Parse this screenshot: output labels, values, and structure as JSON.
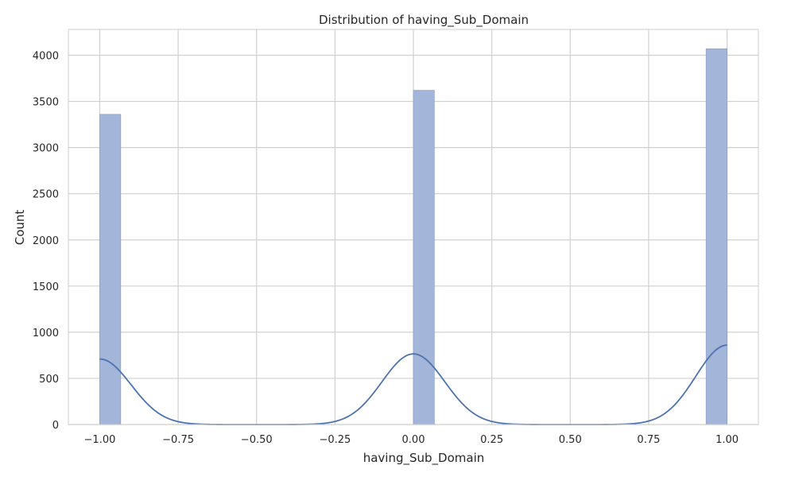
{
  "chart_data": {
    "type": "bar",
    "subtype": "histogram-with-kde",
    "title": "Distribution of having_Sub_Domain",
    "xlabel": "having_Sub_Domain",
    "ylabel": "Count",
    "xlim": [
      -1.1,
      1.1
    ],
    "ylim": [
      0,
      4280
    ],
    "x_ticks": [
      -1.0,
      -0.75,
      -0.5,
      -0.25,
      0.0,
      0.25,
      0.5,
      0.75,
      1.0
    ],
    "x_tick_labels": [
      "−1.00",
      "−0.75",
      "−0.50",
      "−0.25",
      "0.00",
      "0.25",
      "0.50",
      "0.75",
      "1.00"
    ],
    "y_ticks": [
      0,
      500,
      1000,
      1500,
      2000,
      2500,
      3000,
      3500,
      4000
    ],
    "y_tick_labels": [
      "0",
      "500",
      "1000",
      "1500",
      "2000",
      "2500",
      "3000",
      "3500",
      "4000"
    ],
    "grid": true,
    "legend": "none",
    "bin_width": 0.0667,
    "bars": [
      {
        "x_start": -1.0,
        "x_end": -0.9333,
        "count": 3360
      },
      {
        "x_start": 0.0,
        "x_end": 0.0667,
        "count": 3620
      },
      {
        "x_start": 0.9333,
        "x_end": 1.0,
        "count": 4070
      }
    ],
    "kde_peaks": [
      {
        "x": -1.0,
        "height": 710,
        "sigma": 0.1
      },
      {
        "x": 0.0,
        "height": 765,
        "sigma": 0.1
      },
      {
        "x": 1.0,
        "height": 860,
        "sigma": 0.1
      }
    ],
    "colors": {
      "bar_fill": "#a3b5d8",
      "bar_edge": "#8fa4cc",
      "kde_line": "#4c72b0",
      "grid": "#d0d0d0",
      "frame": "#cccccc"
    }
  }
}
